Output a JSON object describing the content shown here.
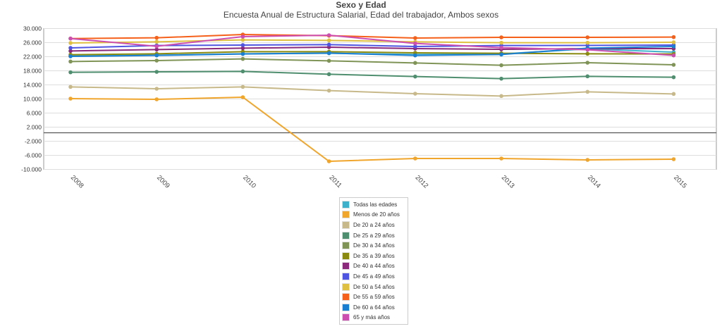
{
  "chart_data": {
    "type": "line",
    "title": "Sexo y Edad",
    "subtitle": "Encuesta Anual de Estructura Salarial, Edad del trabajador, Ambos sexos",
    "xlabel": "",
    "ylabel": "",
    "categories": [
      "2008",
      "2009",
      "2010",
      "2011",
      "2012",
      "2013",
      "2014",
      "2015"
    ],
    "ylim": [
      -10000,
      30000
    ],
    "yticks": [
      30000,
      26000,
      22000,
      18000,
      14000,
      10000,
      6000,
      2000,
      -2000,
      -6000,
      -10000
    ],
    "ytick_labels": [
      "30.000",
      "26.000",
      "22.000",
      "18.000",
      "14.000",
      "10.000",
      "6.000",
      "2.000",
      "-2.000",
      "-6.000",
      "-10.000"
    ],
    "grid": true,
    "legend_position": "bottom",
    "series": [
      {
        "name": "Todas las edades",
        "color": "#3fb0c9",
        "values": [
          22230,
          22430,
          22830,
          22970,
          22630,
          22770,
          24230,
          23300
        ]
      },
      {
        "name": "Menos de 20 años",
        "color": "#f0a52c",
        "values": [
          10100,
          9900,
          10500,
          -7700,
          -6900,
          -6900,
          -7300,
          -7100
        ]
      },
      {
        "name": "De 20 a 24 años",
        "color": "#c8b98a",
        "values": [
          13430,
          12900,
          13430,
          12370,
          11500,
          10830,
          12030,
          11430
        ]
      },
      {
        "name": "De 25 a 29 años",
        "color": "#4f8f6f",
        "values": [
          17570,
          17700,
          17830,
          17030,
          16370,
          15770,
          16430,
          16170
        ]
      },
      {
        "name": "De 30 a 34 años",
        "color": "#7f9456",
        "values": [
          20630,
          20900,
          21370,
          20830,
          20230,
          19570,
          20300,
          19700
        ]
      },
      {
        "name": "De 35 a 39 años",
        "color": "#8a8a10",
        "values": [
          22570,
          22830,
          23430,
          23430,
          23100,
          22970,
          22830,
          22770
        ]
      },
      {
        "name": "De 40 a 44 años",
        "color": "#8b2a7a",
        "values": [
          23630,
          24030,
          24430,
          24700,
          24300,
          24100,
          24300,
          24300
        ]
      },
      {
        "name": "De 45 a 49 años",
        "color": "#4f55e0",
        "values": [
          24500,
          25170,
          25300,
          25430,
          24900,
          25170,
          25200,
          25300
        ]
      },
      {
        "name": "De 50 a 54 años",
        "color": "#e0c040",
        "values": [
          25900,
          26230,
          26770,
          26630,
          26230,
          25970,
          25970,
          26100
        ]
      },
      {
        "name": "De 55 a 59 años",
        "color": "#f5601a",
        "values": [
          27160,
          27370,
          28300,
          27970,
          27300,
          27500,
          27500,
          27570
        ]
      },
      {
        "name": "De 60 a 64 años",
        "color": "#1a7fd0",
        "values": [
          22100,
          22370,
          22770,
          23030,
          22370,
          22630,
          24430,
          24900
        ]
      },
      {
        "name": "65 y más años",
        "color": "#cc4fb0",
        "values": [
          27160,
          24960,
          27700,
          28100,
          25770,
          24570,
          23970,
          22370
        ]
      }
    ]
  }
}
